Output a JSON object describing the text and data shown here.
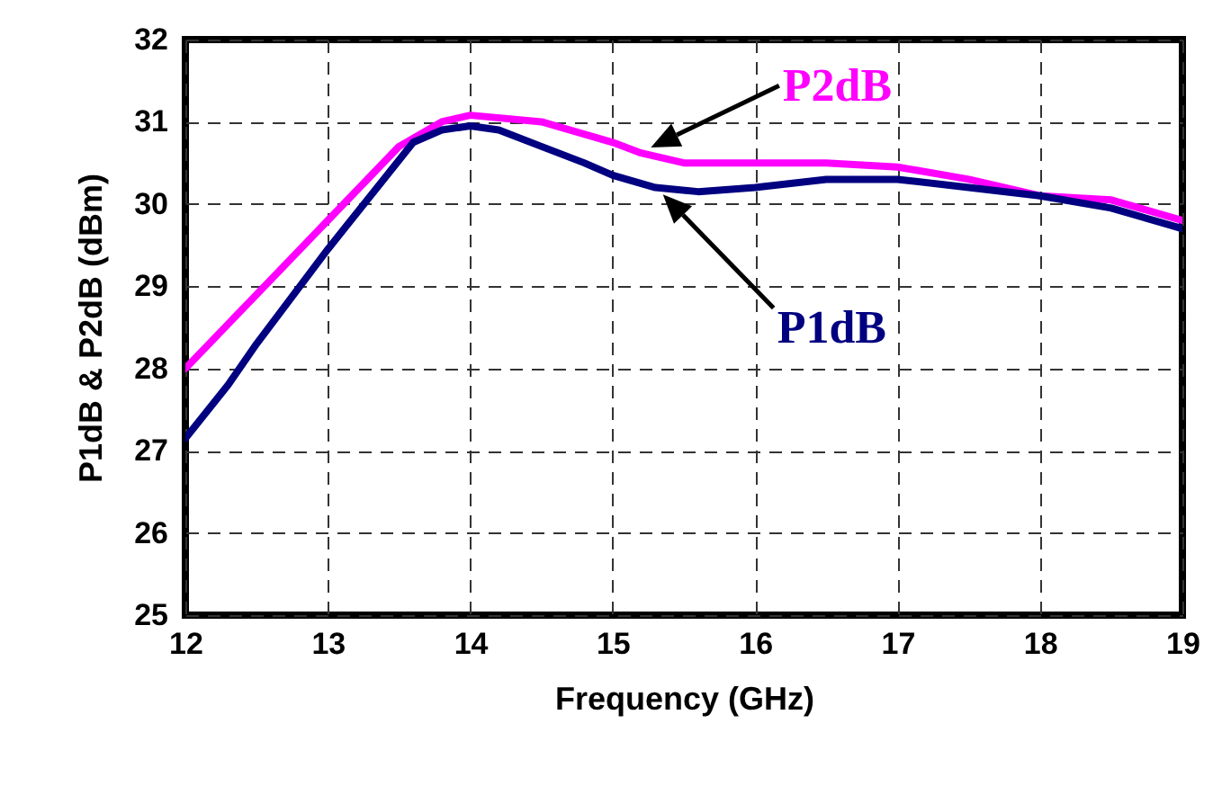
{
  "chart_data": {
    "type": "line",
    "xlabel": "Frequency (GHz)",
    "ylabel": "P1dB & P2dB (dBm)",
    "xlim": [
      12,
      19
    ],
    "ylim": [
      25,
      32
    ],
    "xticks": [
      12,
      13,
      14,
      15,
      16,
      17,
      18,
      19
    ],
    "yticks": [
      25,
      26,
      27,
      28,
      29,
      30,
      31,
      32
    ],
    "grid": true,
    "series": [
      {
        "name": "P2dB",
        "color": "#ff00ff",
        "x": [
          12,
          12.5,
          13,
          13.5,
          13.8,
          14,
          14.5,
          15,
          15.2,
          15.5,
          16,
          16.5,
          17,
          17.5,
          18,
          18.5,
          19
        ],
        "values": [
          28.0,
          28.9,
          29.8,
          30.7,
          31.0,
          31.08,
          31.0,
          30.75,
          30.62,
          30.5,
          30.5,
          30.5,
          30.45,
          30.3,
          30.1,
          30.05,
          29.8
        ]
      },
      {
        "name": "P1dB",
        "color": "#000080",
        "x": [
          12,
          12.3,
          12.5,
          13,
          13.3,
          13.6,
          13.8,
          14,
          14.2,
          14.5,
          14.8,
          15,
          15.3,
          15.6,
          16,
          16.5,
          17,
          17.5,
          18,
          18.5,
          19
        ],
        "values": [
          27.15,
          27.8,
          28.3,
          29.45,
          30.1,
          30.75,
          30.9,
          30.95,
          30.9,
          30.7,
          30.5,
          30.35,
          30.2,
          30.15,
          30.2,
          30.3,
          30.3,
          30.2,
          30.1,
          29.95,
          29.7
        ]
      }
    ]
  }
}
